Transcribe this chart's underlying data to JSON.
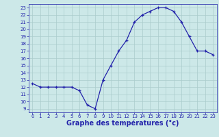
{
  "x": [
    0,
    1,
    2,
    3,
    4,
    5,
    6,
    7,
    8,
    9,
    10,
    11,
    12,
    13,
    14,
    15,
    16,
    17,
    18,
    19,
    20,
    21,
    22,
    23
  ],
  "y": [
    12.5,
    12.0,
    12.0,
    12.0,
    12.0,
    12.0,
    11.5,
    9.5,
    9.0,
    13.0,
    15.0,
    17.0,
    18.5,
    21.0,
    22.0,
    22.5,
    23.0,
    23.0,
    22.5,
    21.0,
    19.0,
    17.0,
    17.0,
    16.5
  ],
  "line_color": "#2222aa",
  "marker": "+",
  "bg_color": "#cce8e8",
  "grid_color": "#aacccc",
  "xlabel": "Graphe des températures (°c)",
  "xlabel_color": "#2222aa",
  "ylim_min": 8.5,
  "ylim_max": 23.5,
  "xlim_min": -0.5,
  "xlim_max": 23.5,
  "yticks": [
    9,
    10,
    11,
    12,
    13,
    14,
    15,
    16,
    17,
    18,
    19,
    20,
    21,
    22,
    23
  ],
  "xticks": [
    0,
    1,
    2,
    3,
    4,
    5,
    6,
    7,
    8,
    9,
    10,
    11,
    12,
    13,
    14,
    15,
    16,
    17,
    18,
    19,
    20,
    21,
    22,
    23
  ],
  "tick_color": "#2222aa",
  "tick_fontsize": 5.0,
  "xlabel_fontsize": 7.0,
  "axis_bg": "#cce8e8",
  "markersize": 3.5,
  "linewidth": 0.9
}
